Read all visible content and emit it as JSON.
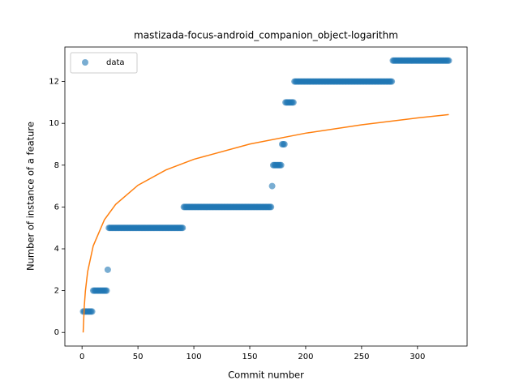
{
  "chart_data": {
    "type": "scatter",
    "title": "mastizada-focus-android_companion_object-logarithm",
    "xlabel": "Commit number",
    "ylabel": "Number of instance of a feature",
    "xlim": [
      -15.35,
      344.35
    ],
    "ylim": [
      -0.65,
      13.65
    ],
    "xticks": [
      0,
      50,
      100,
      150,
      200,
      250,
      300
    ],
    "yticks": [
      0,
      2,
      4,
      6,
      8,
      10,
      12
    ],
    "legend": "upper left",
    "series": [
      {
        "name": "data",
        "kind": "scatter",
        "color": "#1f77b4",
        "x": [
          1,
          2,
          3,
          4,
          5,
          6,
          7,
          8,
          9,
          10,
          11,
          12,
          13,
          14,
          15,
          16,
          17,
          18,
          19,
          20,
          21,
          22,
          23,
          24,
          25,
          26,
          27,
          28,
          29,
          30,
          31,
          32,
          33,
          34,
          35,
          36,
          37,
          38,
          39,
          40,
          41,
          42,
          43,
          44,
          45,
          46,
          47,
          48,
          49,
          50,
          51,
          52,
          53,
          54,
          55,
          56,
          57,
          58,
          59,
          60,
          61,
          62,
          63,
          64,
          65,
          66,
          67,
          68,
          69,
          70,
          71,
          72,
          73,
          74,
          75,
          76,
          77,
          78,
          79,
          80,
          81,
          82,
          83,
          84,
          85,
          86,
          87,
          88,
          89,
          90,
          91,
          92,
          93,
          94,
          95,
          96,
          97,
          98,
          99,
          100,
          101,
          102,
          103,
          104,
          105,
          106,
          107,
          108,
          109,
          110,
          111,
          112,
          113,
          114,
          115,
          116,
          117,
          118,
          119,
          120,
          121,
          122,
          123,
          124,
          125,
          126,
          127,
          128,
          129,
          130,
          131,
          132,
          133,
          134,
          135,
          136,
          137,
          138,
          139,
          140,
          141,
          142,
          143,
          144,
          145,
          146,
          147,
          148,
          149,
          150,
          151,
          152,
          153,
          154,
          155,
          156,
          157,
          158,
          159,
          160,
          161,
          162,
          163,
          164,
          165,
          166,
          167,
          168,
          169,
          170,
          171,
          172,
          173,
          174,
          175,
          176,
          177,
          178,
          179,
          180,
          181,
          182,
          183,
          184,
          185,
          186,
          187,
          188,
          189,
          190,
          191,
          192,
          193,
          194,
          195,
          196,
          197,
          198,
          199,
          200,
          201,
          202,
          203,
          204,
          205,
          206,
          207,
          208,
          209,
          210,
          211,
          212,
          213,
          214,
          215,
          216,
          217,
          218,
          219,
          220,
          221,
          222,
          223,
          224,
          225,
          226,
          227,
          228,
          229,
          230,
          231,
          232,
          233,
          234,
          235,
          236,
          237,
          238,
          239,
          240,
          241,
          242,
          243,
          244,
          245,
          246,
          247,
          248,
          249,
          250,
          251,
          252,
          253,
          254,
          255,
          256,
          257,
          258,
          259,
          260,
          261,
          262,
          263,
          264,
          265,
          266,
          267,
          268,
          269,
          270,
          271,
          272,
          273,
          274,
          275,
          276,
          277,
          278,
          279,
          280,
          281,
          282,
          283,
          284,
          285,
          286,
          287,
          288,
          289,
          290,
          291,
          292,
          293,
          294,
          295,
          296,
          297,
          298,
          299,
          300,
          301,
          302,
          303,
          304,
          305,
          306,
          307,
          308,
          309,
          310,
          311,
          312,
          313,
          314,
          315,
          316,
          317,
          318,
          319,
          320,
          321,
          322,
          323,
          324,
          325,
          326,
          327,
          328
        ],
        "values": [
          1,
          1,
          1,
          1,
          1,
          1,
          1,
          1,
          1,
          2,
          2,
          2,
          2,
          2,
          2,
          2,
          2,
          2,
          2,
          2,
          2,
          2,
          3,
          5,
          5,
          5,
          5,
          5,
          5,
          5,
          5,
          5,
          5,
          5,
          5,
          5,
          5,
          5,
          5,
          5,
          5,
          5,
          5,
          5,
          5,
          5,
          5,
          5,
          5,
          5,
          5,
          5,
          5,
          5,
          5,
          5,
          5,
          5,
          5,
          5,
          5,
          5,
          5,
          5,
          5,
          5,
          5,
          5,
          5,
          5,
          5,
          5,
          5,
          5,
          5,
          5,
          5,
          5,
          5,
          5,
          5,
          5,
          5,
          5,
          5,
          5,
          5,
          5,
          5,
          5,
          6,
          6,
          6,
          6,
          6,
          6,
          6,
          6,
          6,
          6,
          6,
          6,
          6,
          6,
          6,
          6,
          6,
          6,
          6,
          6,
          6,
          6,
          6,
          6,
          6,
          6,
          6,
          6,
          6,
          6,
          6,
          6,
          6,
          6,
          6,
          6,
          6,
          6,
          6,
          6,
          6,
          6,
          6,
          6,
          6,
          6,
          6,
          6,
          6,
          6,
          6,
          6,
          6,
          6,
          6,
          6,
          6,
          6,
          6,
          6,
          6,
          6,
          6,
          6,
          6,
          6,
          6,
          6,
          6,
          6,
          6,
          6,
          6,
          6,
          6,
          6,
          6,
          6,
          6,
          7,
          8,
          8,
          8,
          8,
          8,
          8,
          8,
          8,
          9,
          9,
          9,
          11,
          11,
          11,
          11,
          11,
          11,
          11,
          11,
          12,
          12,
          12,
          12,
          12,
          12,
          12,
          12,
          12,
          12,
          12,
          12,
          12,
          12,
          12,
          12,
          12,
          12,
          12,
          12,
          12,
          12,
          12,
          12,
          12,
          12,
          12,
          12,
          12,
          12,
          12,
          12,
          12,
          12,
          12,
          12,
          12,
          12,
          12,
          12,
          12,
          12,
          12,
          12,
          12,
          12,
          12,
          12,
          12,
          12,
          12,
          12,
          12,
          12,
          12,
          12,
          12,
          12,
          12,
          12,
          12,
          12,
          12,
          12,
          12,
          12,
          12,
          12,
          12,
          12,
          12,
          12,
          12,
          12,
          12,
          12,
          12,
          12,
          12,
          12,
          12,
          12,
          12,
          12,
          12,
          12,
          12,
          12,
          13,
          13,
          13,
          13,
          13,
          13,
          13,
          13,
          13,
          13,
          13,
          13,
          13,
          13,
          13,
          13,
          13,
          13,
          13,
          13,
          13,
          13,
          13,
          13,
          13,
          13,
          13,
          13,
          13,
          13,
          13,
          13,
          13,
          13,
          13,
          13,
          13,
          13,
          13,
          13,
          13,
          13,
          13,
          13,
          13,
          13,
          13,
          13,
          13,
          13,
          13
        ]
      },
      {
        "kind": "line",
        "color": "#ff7f0e",
        "x": [
          1,
          2,
          3,
          5,
          10,
          20,
          30,
          50,
          75,
          100,
          150,
          200,
          250,
          300,
          328
        ],
        "values": [
          0,
          1.25,
          1.98,
          2.9,
          4.14,
          5.39,
          6.12,
          7.04,
          7.77,
          8.28,
          9.01,
          9.53,
          9.93,
          10.26,
          10.42
        ]
      }
    ]
  }
}
